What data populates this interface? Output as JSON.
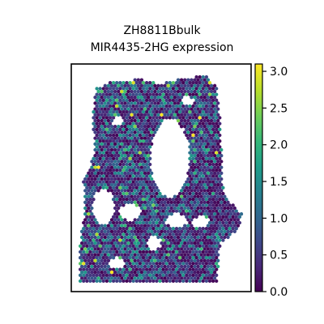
{
  "chart_data": {
    "type": "scatter",
    "subtype": "spatial-hexbin",
    "title_line1": "ZH8811Bbulk",
    "title_line2": "MIR4435-2HG expression",
    "xlabel": "",
    "ylabel": "",
    "axes_ticks_visible": false,
    "grid": false,
    "colormap": "viridis",
    "color_range": [
      0.0,
      3.1
    ],
    "colorbar": {
      "placement": "right",
      "ticks": [
        "0.0",
        "0.5",
        "1.0",
        "1.5",
        "2.0",
        "2.5",
        "3.0"
      ],
      "tick_values": [
        0.0,
        0.5,
        1.0,
        1.5,
        2.0,
        2.5,
        3.0
      ]
    },
    "note_values": "Spot expression values mostly between 0.0 and 1.5, sparse spots up to about 3.1"
  },
  "colors": {
    "viridis": [
      "#440154",
      "#482878",
      "#3e4989",
      "#31688e",
      "#26828e",
      "#1f9e89",
      "#35b779",
      "#6ece58",
      "#b5de2b",
      "#fde725"
    ]
  }
}
